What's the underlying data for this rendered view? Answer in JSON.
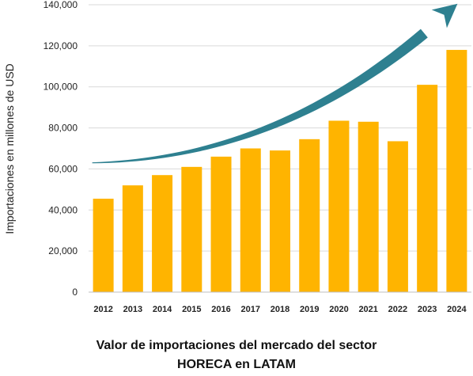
{
  "chart_data": {
    "type": "bar",
    "title_lines": [
      "Valor de importaciones del mercado del sector",
      "HORECA en LATAM"
    ],
    "ylabel": "Importaciones en millones de USD",
    "xlabel": "",
    "categories": [
      "2012",
      "2013",
      "2014",
      "2015",
      "2016",
      "2017",
      "2018",
      "2019",
      "2020",
      "2021",
      "2022",
      "2023",
      "2024"
    ],
    "values": [
      45500,
      52000,
      57000,
      61000,
      66000,
      70000,
      69000,
      74500,
      83500,
      83000,
      73500,
      101000,
      118000
    ],
    "ylim": [
      0,
      140000
    ],
    "yticks": [
      0,
      20000,
      40000,
      60000,
      80000,
      100000,
      120000,
      140000
    ],
    "ytick_labels": [
      "0",
      "20,000",
      "40,000",
      "60,000",
      "80,000",
      "100,000",
      "120,000",
      "140,000"
    ],
    "grid": true,
    "legend": "none",
    "bar_color": "#FFB400",
    "arrow_color": "#2E8090",
    "grid_color": "#D9D9D9",
    "annotations": [
      {
        "type": "trend-arrow",
        "from_category": "2012",
        "from_value": 63000,
        "to_category": "2024",
        "to_value": 140500
      }
    ]
  }
}
